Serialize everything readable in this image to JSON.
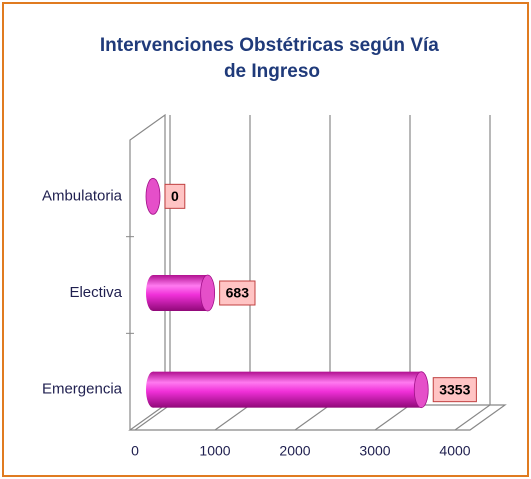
{
  "chart_data": {
    "type": "bar",
    "orientation": "horizontal",
    "title": "Intervenciones Obstétricas según Vía de Ingreso",
    "categories": [
      "Ambulatoria",
      "Electiva",
      "Emergencia"
    ],
    "values": [
      0,
      683,
      3353
    ],
    "color": "#e020c8",
    "xlim": [
      0,
      4000
    ],
    "xticks": [
      0,
      1000,
      2000,
      3000,
      4000
    ],
    "grid": true
  }
}
